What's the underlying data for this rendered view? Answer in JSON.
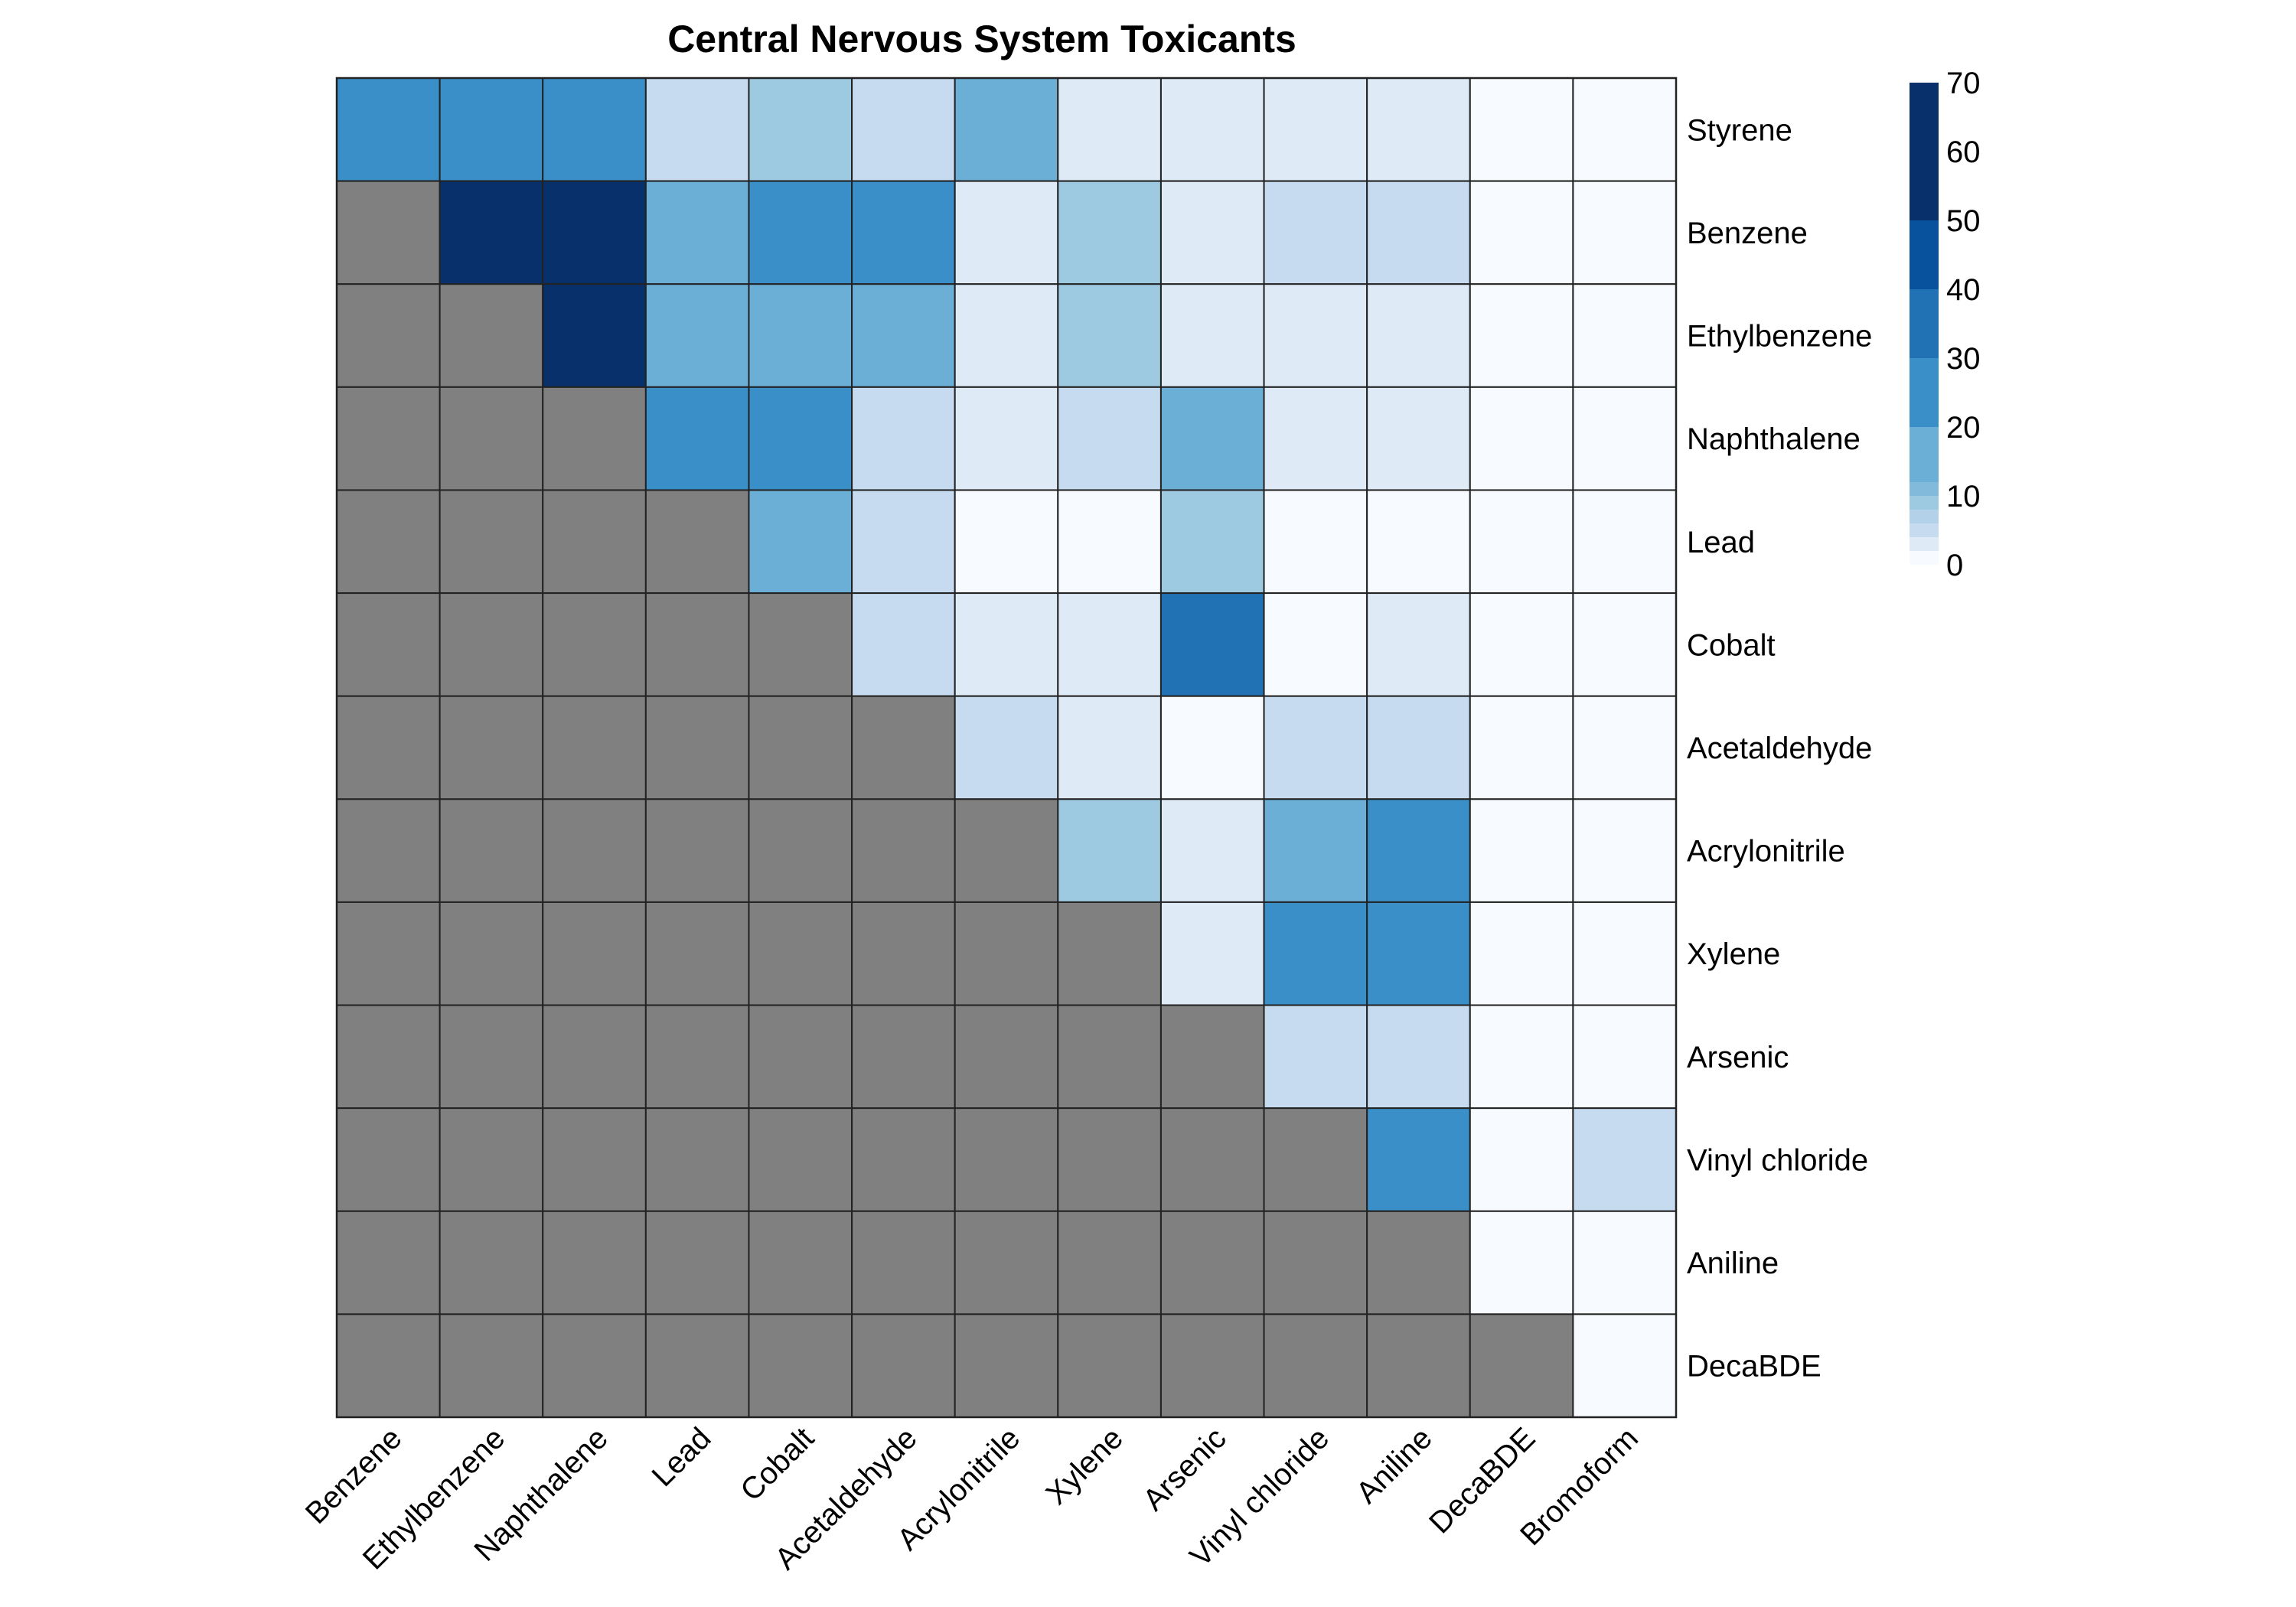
{
  "chart_data": {
    "type": "heatmap",
    "title": "Central Nervous System Toxicants",
    "rows": [
      "Styrene",
      "Benzene",
      "Ethylbenzene",
      "Naphthalene",
      "Lead",
      "Cobalt",
      "Acetaldehyde",
      "Acrylonitrile",
      "Xylene",
      "Arsenic",
      "Vinyl chloride",
      "Aniline",
      "DecaBDE"
    ],
    "columns": [
      "Benzene",
      "Ethylbenzene",
      "Naphthalene",
      "Lead",
      "Cobalt",
      "Acetaldehyde",
      "Acrylonitrile",
      "Xylene",
      "Arsenic",
      "Vinyl chloride",
      "Aniline",
      "DecaBDE",
      "Bromoform"
    ],
    "values": [
      [
        25,
        25,
        25,
        4,
        8,
        4,
        15,
        2,
        2,
        2,
        2,
        0,
        0
      ],
      [
        null,
        60,
        60,
        15,
        25,
        25,
        2,
        8,
        2,
        4,
        4,
        0,
        0
      ],
      [
        null,
        null,
        60,
        15,
        15,
        15,
        2,
        8,
        2,
        2,
        2,
        0,
        0
      ],
      [
        null,
        null,
        null,
        25,
        25,
        4,
        2,
        4,
        15,
        2,
        2,
        0,
        0
      ],
      [
        null,
        null,
        null,
        null,
        15,
        4,
        0,
        0,
        8,
        0,
        0,
        0,
        0
      ],
      [
        null,
        null,
        null,
        null,
        null,
        4,
        2,
        2,
        35,
        0,
        2,
        0,
        0
      ],
      [
        null,
        null,
        null,
        null,
        null,
        null,
        4,
        2,
        0,
        4,
        4,
        0,
        0
      ],
      [
        null,
        null,
        null,
        null,
        null,
        null,
        null,
        8,
        2,
        15,
        25,
        0,
        0
      ],
      [
        null,
        null,
        null,
        null,
        null,
        null,
        null,
        null,
        2,
        25,
        25,
        0,
        0
      ],
      [
        null,
        null,
        null,
        null,
        null,
        null,
        null,
        null,
        null,
        4,
        4,
        0,
        0
      ],
      [
        null,
        null,
        null,
        null,
        null,
        null,
        null,
        null,
        null,
        null,
        25,
        0,
        4
      ],
      [
        null,
        null,
        null,
        null,
        null,
        null,
        null,
        null,
        null,
        null,
        null,
        0,
        0
      ],
      [
        null,
        null,
        null,
        null,
        null,
        null,
        null,
        null,
        null,
        null,
        null,
        null,
        0
      ]
    ],
    "missing_color": "#808080",
    "legend": {
      "position": "right",
      "ticks": [
        0,
        10,
        20,
        30,
        40,
        50,
        60,
        70
      ],
      "range": [
        0,
        70
      ],
      "bins": [
        {
          "from": 0,
          "to": 2,
          "color": "#F7FBFF"
        },
        {
          "from": 2,
          "to": 4,
          "color": "#DEEBF7"
        },
        {
          "from": 4,
          "to": 6,
          "color": "#C6DBEF"
        },
        {
          "from": 6,
          "to": 8,
          "color": "#B3D2E9"
        },
        {
          "from": 8,
          "to": 10,
          "color": "#9ECAE1"
        },
        {
          "from": 10,
          "to": 12,
          "color": "#81BADA"
        },
        {
          "from": 12,
          "to": 20,
          "color": "#6BAED6"
        },
        {
          "from": 20,
          "to": 30,
          "color": "#3A8FC8"
        },
        {
          "from": 30,
          "to": 40,
          "color": "#2171B5"
        },
        {
          "from": 40,
          "to": 50,
          "color": "#08519C"
        },
        {
          "from": 50,
          "to": 70,
          "color": "#08306B"
        }
      ]
    }
  }
}
